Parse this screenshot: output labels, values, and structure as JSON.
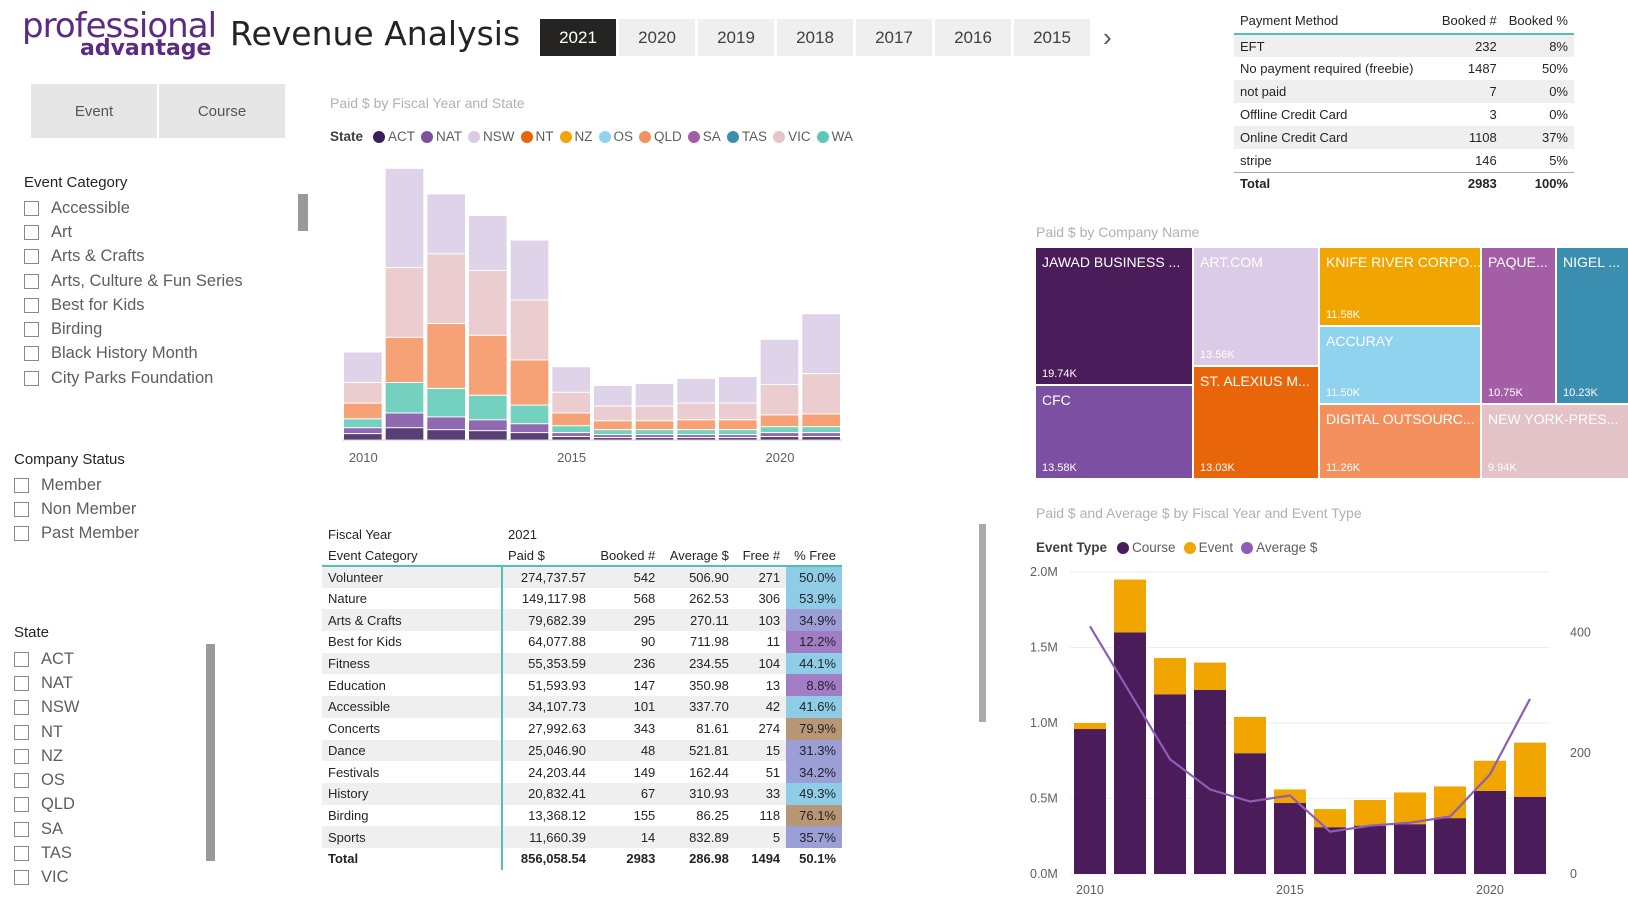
{
  "logo": {
    "line1": "professional",
    "line2": "advantage"
  },
  "title": "Revenue Analysis",
  "years": [
    "2021",
    "2020",
    "2019",
    "2018",
    "2017",
    "2016",
    "2015"
  ],
  "selected_year": "2021",
  "toggles": [
    "Event",
    "Course"
  ],
  "event_category": {
    "title": "Event Category",
    "items": [
      "Accessible",
      "Art",
      "Arts & Crafts",
      "Arts, Culture & Fun Series",
      "Best for Kids",
      "Birding",
      "Black History Month",
      "City Parks Foundation"
    ]
  },
  "company_status": {
    "title": "Company Status",
    "items": [
      "Member",
      "Non Member",
      "Past Member"
    ]
  },
  "state_slicer": {
    "title": "State",
    "items": [
      "ACT",
      "NAT",
      "NSW",
      "NT",
      "NZ",
      "OS",
      "QLD",
      "SA",
      "TAS",
      "VIC"
    ]
  },
  "ribbon": {
    "title": "Paid $ by Fiscal Year and State",
    "legend_title": "State",
    "legend": [
      {
        "name": "ACT",
        "color": "#3b1f5c"
      },
      {
        "name": "NAT",
        "color": "#7d4fa3"
      },
      {
        "name": "NSW",
        "color": "#d9cbe6"
      },
      {
        "name": "NT",
        "color": "#e8650a"
      },
      {
        "name": "NZ",
        "color": "#f0a500"
      },
      {
        "name": "OS",
        "color": "#8fd3ee"
      },
      {
        "name": "QLD",
        "color": "#f4905e"
      },
      {
        "name": "SA",
        "color": "#a35ea5"
      },
      {
        "name": "TAS",
        "color": "#3a8fb0"
      },
      {
        "name": "VIC",
        "color": "#e8c4c8"
      },
      {
        "name": "WA",
        "color": "#5cc9b5"
      }
    ],
    "x_ticks": [
      "2010",
      "2015",
      "2020"
    ]
  },
  "payment": {
    "headers": [
      "Payment Method",
      "Booked #",
      "Booked %"
    ],
    "rows": [
      [
        "EFT",
        "232",
        "8%"
      ],
      [
        "No payment required (freebie)",
        "1487",
        "50%"
      ],
      [
        "not paid",
        "7",
        "0%"
      ],
      [
        "Offline Credit Card",
        "3",
        "0%"
      ],
      [
        "Online Credit Card",
        "1108",
        "37%"
      ],
      [
        "stripe",
        "146",
        "5%"
      ]
    ],
    "total": [
      "Total",
      "2983",
      "100%"
    ]
  },
  "treemap": {
    "title": "Paid $ by Company Name",
    "tiles": [
      {
        "name": "JAWAD BUSINESS ...",
        "value": "19.74K",
        "color": "#4b1c5a"
      },
      {
        "name": "CFC",
        "value": "13.58K",
        "color": "#7d4fa3"
      },
      {
        "name": "ART.COM",
        "value": "13.56K",
        "color": "#dccbe6"
      },
      {
        "name": "ST. ALEXIUS M...",
        "value": "13.03K",
        "color": "#e8650a"
      },
      {
        "name": "KNIFE RIVER CORPO...",
        "value": "11.58K",
        "color": "#f0a500"
      },
      {
        "name": "ACCURAY",
        "value": "11.50K",
        "color": "#8fd3ee"
      },
      {
        "name": "DIGITAL OUTSOURC...",
        "value": "11.26K",
        "color": "#f4905e"
      },
      {
        "name": "PAQUE...",
        "value": "10.75K",
        "color": "#a35ea5"
      },
      {
        "name": "NIGEL ...",
        "value": "10.23K",
        "color": "#3a8fb0"
      },
      {
        "name": "NEW YORK-PRES...",
        "value": "9.94K",
        "color": "#e3c3c8"
      }
    ]
  },
  "category_table": {
    "hdr_year_label": "Fiscal Year",
    "hdr_year_value": "2021",
    "headers": [
      "Event Category",
      "Paid $",
      "Booked #",
      "Average $",
      "Free #",
      "% Free"
    ],
    "rows": [
      [
        "Volunteer",
        "274,737.57",
        "542",
        "506.90",
        "271",
        "50.0%"
      ],
      [
        "Nature",
        "149,117.98",
        "568",
        "262.53",
        "306",
        "53.9%"
      ],
      [
        "Arts & Crafts",
        "79,682.39",
        "295",
        "270.11",
        "103",
        "34.9%"
      ],
      [
        "Best for Kids",
        "64,077.88",
        "90",
        "711.98",
        "11",
        "12.2%"
      ],
      [
        "Fitness",
        "55,353.59",
        "236",
        "234.55",
        "104",
        "44.1%"
      ],
      [
        "Education",
        "51,593.93",
        "147",
        "350.98",
        "13",
        "8.8%"
      ],
      [
        "Accessible",
        "34,107.73",
        "101",
        "337.70",
        "42",
        "41.6%"
      ],
      [
        "Concerts",
        "27,992.63",
        "343",
        "81.61",
        "274",
        "79.9%"
      ],
      [
        "Dance",
        "25,046.90",
        "48",
        "521.81",
        "15",
        "31.3%"
      ],
      [
        "Festivals",
        "24,203.44",
        "149",
        "162.44",
        "51",
        "34.2%"
      ],
      [
        "History",
        "20,832.41",
        "67",
        "310.93",
        "33",
        "49.3%"
      ],
      [
        "Birding",
        "13,368.12",
        "155",
        "86.25",
        "118",
        "76.1%"
      ],
      [
        "Sports",
        "11,660.39",
        "14",
        "832.89",
        "5",
        "35.7%"
      ]
    ],
    "pct_colors": [
      "#8fcde6",
      "#8fcde6",
      "#9b9fd6",
      "#a37cc6",
      "#8fcde6",
      "#a37cc6",
      "#8fcde6",
      "#b89776",
      "#9b9fd6",
      "#9b9fd6",
      "#8fcde6",
      "#b89776",
      "#9b9fd6"
    ],
    "total": [
      "Total",
      "856,058.54",
      "2983",
      "286.98",
      "1494",
      "50.1%"
    ]
  },
  "chart_data": {
    "type": "bar",
    "title": "Paid $ and Average $ by Fiscal Year and Event Type",
    "legend_title": "Event Type",
    "categories": [
      "2010",
      "2011",
      "2012",
      "2013",
      "2014",
      "2015",
      "2016",
      "2017",
      "2018",
      "2019",
      "2020",
      "2021"
    ],
    "x_ticks": [
      "2010",
      "2015",
      "2020"
    ],
    "y_ticks": [
      "0.0M",
      "0.5M",
      "1.0M",
      "1.5M",
      "2.0M"
    ],
    "y2_ticks": [
      "0",
      "200",
      "400"
    ],
    "ylim": [
      0,
      2000000
    ],
    "y2lim": [
      0,
      500
    ],
    "series": [
      {
        "name": "Course",
        "color": "#4b1c5a",
        "values": [
          960000,
          1600000,
          1190000,
          1220000,
          800000,
          470000,
          310000,
          320000,
          330000,
          370000,
          550000,
          510000
        ]
      },
      {
        "name": "Event",
        "color": "#f0a500",
        "values": [
          40000,
          350000,
          240000,
          180000,
          240000,
          90000,
          120000,
          170000,
          210000,
          210000,
          200000,
          360000
        ]
      },
      {
        "name": "Average $",
        "color": "#8e5db5",
        "axis": "secondary",
        "values": [
          410,
          300,
          190,
          140,
          120,
          130,
          70,
          80,
          85,
          95,
          165,
          290
        ]
      }
    ]
  }
}
